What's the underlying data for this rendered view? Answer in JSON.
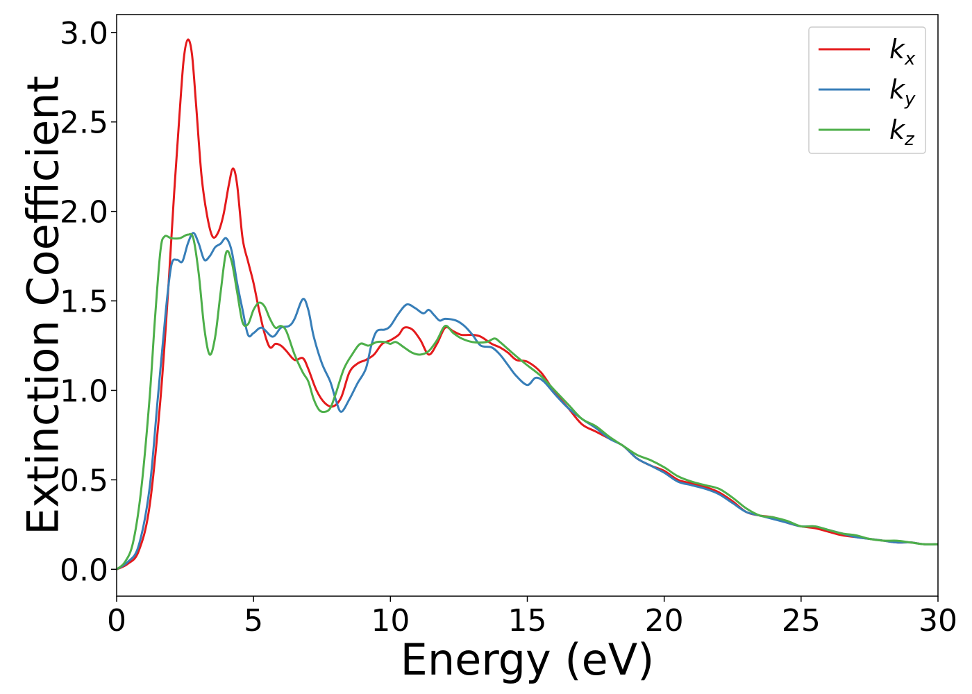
{
  "chart_data": {
    "type": "line",
    "xlabel": "Energy (eV)",
    "ylabel": "Extinction Coefficient",
    "xlim": [
      0,
      30
    ],
    "ylim": [
      -0.15,
      3.1
    ],
    "xticks": [
      0,
      5,
      10,
      15,
      20,
      25,
      30
    ],
    "xtick_labels": [
      "0",
      "5",
      "10",
      "15",
      "20",
      "25",
      "30"
    ],
    "yticks": [
      0.0,
      0.5,
      1.0,
      1.5,
      2.0,
      2.5,
      3.0
    ],
    "ytick_labels": [
      "0.0",
      "0.5",
      "1.0",
      "1.5",
      "2.0",
      "2.5",
      "3.0"
    ],
    "grid": false,
    "legend_position": "top-right",
    "series": [
      {
        "name": "k_x",
        "label_main": "k",
        "label_sub": "x",
        "color": "#e41a1c",
        "points": [
          [
            0,
            0
          ],
          [
            0.4,
            0.03
          ],
          [
            0.8,
            0.1
          ],
          [
            1.2,
            0.35
          ],
          [
            1.6,
            0.95
          ],
          [
            1.9,
            1.6
          ],
          [
            2.1,
            2.1
          ],
          [
            2.3,
            2.55
          ],
          [
            2.45,
            2.85
          ],
          [
            2.6,
            2.96
          ],
          [
            2.75,
            2.88
          ],
          [
            2.9,
            2.6
          ],
          [
            3.1,
            2.2
          ],
          [
            3.3,
            1.98
          ],
          [
            3.5,
            1.86
          ],
          [
            3.7,
            1.88
          ],
          [
            3.9,
            1.98
          ],
          [
            4.1,
            2.15
          ],
          [
            4.25,
            2.24
          ],
          [
            4.4,
            2.15
          ],
          [
            4.6,
            1.85
          ],
          [
            4.8,
            1.72
          ],
          [
            5.0,
            1.6
          ],
          [
            5.2,
            1.45
          ],
          [
            5.4,
            1.32
          ],
          [
            5.6,
            1.24
          ],
          [
            5.8,
            1.26
          ],
          [
            6.0,
            1.25
          ],
          [
            6.2,
            1.22
          ],
          [
            6.5,
            1.17
          ],
          [
            6.8,
            1.18
          ],
          [
            7.0,
            1.12
          ],
          [
            7.3,
            1.0
          ],
          [
            7.6,
            0.93
          ],
          [
            7.9,
            0.91
          ],
          [
            8.2,
            0.96
          ],
          [
            8.5,
            1.1
          ],
          [
            8.8,
            1.15
          ],
          [
            9.1,
            1.17
          ],
          [
            9.4,
            1.2
          ],
          [
            9.7,
            1.26
          ],
          [
            10.0,
            1.28
          ],
          [
            10.3,
            1.31
          ],
          [
            10.5,
            1.35
          ],
          [
            10.8,
            1.34
          ],
          [
            11.1,
            1.28
          ],
          [
            11.4,
            1.2
          ],
          [
            11.7,
            1.26
          ],
          [
            12.0,
            1.35
          ],
          [
            12.3,
            1.33
          ],
          [
            12.6,
            1.31
          ],
          [
            13.0,
            1.31
          ],
          [
            13.3,
            1.3
          ],
          [
            13.7,
            1.26
          ],
          [
            14.0,
            1.24
          ],
          [
            14.3,
            1.21
          ],
          [
            14.6,
            1.17
          ],
          [
            15.0,
            1.16
          ],
          [
            15.5,
            1.1
          ],
          [
            16.0,
            0.99
          ],
          [
            16.5,
            0.9
          ],
          [
            17.0,
            0.81
          ],
          [
            17.5,
            0.77
          ],
          [
            18.0,
            0.73
          ],
          [
            18.5,
            0.69
          ],
          [
            19.0,
            0.62
          ],
          [
            19.5,
            0.58
          ],
          [
            20.0,
            0.55
          ],
          [
            20.5,
            0.5
          ],
          [
            21.0,
            0.48
          ],
          [
            21.5,
            0.46
          ],
          [
            22.0,
            0.43
          ],
          [
            22.5,
            0.38
          ],
          [
            23.0,
            0.32
          ],
          [
            23.5,
            0.3
          ],
          [
            24.0,
            0.29
          ],
          [
            24.5,
            0.26
          ],
          [
            25.0,
            0.24
          ],
          [
            25.5,
            0.23
          ],
          [
            26.0,
            0.21
          ],
          [
            26.5,
            0.19
          ],
          [
            27.0,
            0.18
          ],
          [
            27.5,
            0.17
          ],
          [
            28.0,
            0.16
          ],
          [
            28.5,
            0.15
          ],
          [
            29.0,
            0.15
          ],
          [
            29.5,
            0.14
          ],
          [
            30.0,
            0.14
          ]
        ]
      },
      {
        "name": "k_y",
        "label_main": "k",
        "label_sub": "y",
        "color": "#377eb8",
        "points": [
          [
            0,
            0
          ],
          [
            0.4,
            0.04
          ],
          [
            0.8,
            0.13
          ],
          [
            1.2,
            0.45
          ],
          [
            1.5,
            0.95
          ],
          [
            1.8,
            1.45
          ],
          [
            2.0,
            1.7
          ],
          [
            2.2,
            1.73
          ],
          [
            2.4,
            1.72
          ],
          [
            2.6,
            1.82
          ],
          [
            2.8,
            1.88
          ],
          [
            3.0,
            1.82
          ],
          [
            3.2,
            1.73
          ],
          [
            3.4,
            1.75
          ],
          [
            3.6,
            1.8
          ],
          [
            3.8,
            1.82
          ],
          [
            4.0,
            1.85
          ],
          [
            4.2,
            1.78
          ],
          [
            4.4,
            1.6
          ],
          [
            4.6,
            1.45
          ],
          [
            4.8,
            1.31
          ],
          [
            5.0,
            1.32
          ],
          [
            5.3,
            1.35
          ],
          [
            5.7,
            1.3
          ],
          [
            6.0,
            1.35
          ],
          [
            6.3,
            1.36
          ],
          [
            6.5,
            1.4
          ],
          [
            6.8,
            1.51
          ],
          [
            7.0,
            1.45
          ],
          [
            7.2,
            1.3
          ],
          [
            7.5,
            1.15
          ],
          [
            7.8,
            1.05
          ],
          [
            8.0,
            0.95
          ],
          [
            8.2,
            0.88
          ],
          [
            8.5,
            0.95
          ],
          [
            8.8,
            1.04
          ],
          [
            9.1,
            1.12
          ],
          [
            9.3,
            1.25
          ],
          [
            9.5,
            1.33
          ],
          [
            9.8,
            1.34
          ],
          [
            10.0,
            1.36
          ],
          [
            10.3,
            1.43
          ],
          [
            10.6,
            1.48
          ],
          [
            10.9,
            1.46
          ],
          [
            11.2,
            1.43
          ],
          [
            11.4,
            1.45
          ],
          [
            11.6,
            1.42
          ],
          [
            11.8,
            1.39
          ],
          [
            12.0,
            1.4
          ],
          [
            12.4,
            1.39
          ],
          [
            12.7,
            1.36
          ],
          [
            13.0,
            1.31
          ],
          [
            13.3,
            1.25
          ],
          [
            13.7,
            1.24
          ],
          [
            14.0,
            1.2
          ],
          [
            14.3,
            1.14
          ],
          [
            14.6,
            1.08
          ],
          [
            15.0,
            1.03
          ],
          [
            15.3,
            1.07
          ],
          [
            15.6,
            1.05
          ],
          [
            16.0,
            0.98
          ],
          [
            16.5,
            0.9
          ],
          [
            17.0,
            0.84
          ],
          [
            17.5,
            0.79
          ],
          [
            18.0,
            0.73
          ],
          [
            18.5,
            0.69
          ],
          [
            19.0,
            0.62
          ],
          [
            19.5,
            0.58
          ],
          [
            20.0,
            0.54
          ],
          [
            20.5,
            0.49
          ],
          [
            21.0,
            0.47
          ],
          [
            21.5,
            0.45
          ],
          [
            22.0,
            0.42
          ],
          [
            22.5,
            0.37
          ],
          [
            23.0,
            0.32
          ],
          [
            23.5,
            0.3
          ],
          [
            24.0,
            0.28
          ],
          [
            24.5,
            0.26
          ],
          [
            25.0,
            0.24
          ],
          [
            25.5,
            0.24
          ],
          [
            26.0,
            0.22
          ],
          [
            26.5,
            0.2
          ],
          [
            27.0,
            0.18
          ],
          [
            27.5,
            0.17
          ],
          [
            28.0,
            0.16
          ],
          [
            28.5,
            0.15
          ],
          [
            29.0,
            0.15
          ],
          [
            29.5,
            0.14
          ],
          [
            30.0,
            0.14
          ]
        ]
      },
      {
        "name": "k_z",
        "label_main": "k",
        "label_sub": "z",
        "color": "#4daf4a",
        "points": [
          [
            0,
            0
          ],
          [
            0.3,
            0.04
          ],
          [
            0.6,
            0.15
          ],
          [
            0.9,
            0.45
          ],
          [
            1.2,
            0.95
          ],
          [
            1.4,
            1.4
          ],
          [
            1.6,
            1.78
          ],
          [
            1.75,
            1.86
          ],
          [
            2.0,
            1.85
          ],
          [
            2.3,
            1.85
          ],
          [
            2.6,
            1.87
          ],
          [
            2.8,
            1.85
          ],
          [
            3.0,
            1.65
          ],
          [
            3.2,
            1.35
          ],
          [
            3.4,
            1.2
          ],
          [
            3.6,
            1.3
          ],
          [
            3.8,
            1.55
          ],
          [
            4.0,
            1.77
          ],
          [
            4.2,
            1.72
          ],
          [
            4.4,
            1.55
          ],
          [
            4.6,
            1.38
          ],
          [
            4.8,
            1.37
          ],
          [
            5.0,
            1.45
          ],
          [
            5.2,
            1.49
          ],
          [
            5.4,
            1.47
          ],
          [
            5.6,
            1.4
          ],
          [
            5.8,
            1.35
          ],
          [
            6.0,
            1.36
          ],
          [
            6.2,
            1.33
          ],
          [
            6.5,
            1.2
          ],
          [
            6.8,
            1.1
          ],
          [
            7.0,
            1.05
          ],
          [
            7.2,
            0.95
          ],
          [
            7.4,
            0.89
          ],
          [
            7.6,
            0.88
          ],
          [
            7.8,
            0.9
          ],
          [
            8.0,
            0.98
          ],
          [
            8.3,
            1.12
          ],
          [
            8.6,
            1.2
          ],
          [
            8.9,
            1.26
          ],
          [
            9.2,
            1.25
          ],
          [
            9.5,
            1.27
          ],
          [
            9.8,
            1.27
          ],
          [
            10.0,
            1.26
          ],
          [
            10.2,
            1.27
          ],
          [
            10.5,
            1.24
          ],
          [
            10.8,
            1.21
          ],
          [
            11.1,
            1.2
          ],
          [
            11.4,
            1.22
          ],
          [
            11.7,
            1.28
          ],
          [
            12.0,
            1.36
          ],
          [
            12.3,
            1.32
          ],
          [
            12.6,
            1.29
          ],
          [
            13.0,
            1.27
          ],
          [
            13.5,
            1.27
          ],
          [
            13.8,
            1.29
          ],
          [
            14.0,
            1.27
          ],
          [
            14.3,
            1.23
          ],
          [
            14.6,
            1.19
          ],
          [
            15.0,
            1.14
          ],
          [
            15.5,
            1.08
          ],
          [
            16.0,
            1.0
          ],
          [
            16.5,
            0.92
          ],
          [
            17.0,
            0.84
          ],
          [
            17.5,
            0.8
          ],
          [
            18.0,
            0.74
          ],
          [
            18.5,
            0.69
          ],
          [
            19.0,
            0.64
          ],
          [
            19.5,
            0.61
          ],
          [
            20.0,
            0.57
          ],
          [
            20.5,
            0.52
          ],
          [
            21.0,
            0.49
          ],
          [
            21.5,
            0.47
          ],
          [
            22.0,
            0.45
          ],
          [
            22.5,
            0.4
          ],
          [
            23.0,
            0.34
          ],
          [
            23.5,
            0.3
          ],
          [
            24.0,
            0.29
          ],
          [
            24.5,
            0.27
          ],
          [
            25.0,
            0.24
          ],
          [
            25.5,
            0.24
          ],
          [
            26.0,
            0.22
          ],
          [
            26.5,
            0.2
          ],
          [
            27.0,
            0.19
          ],
          [
            27.5,
            0.17
          ],
          [
            28.0,
            0.16
          ],
          [
            28.5,
            0.16
          ],
          [
            29.0,
            0.15
          ],
          [
            29.5,
            0.14
          ],
          [
            30.0,
            0.14
          ]
        ]
      }
    ]
  }
}
